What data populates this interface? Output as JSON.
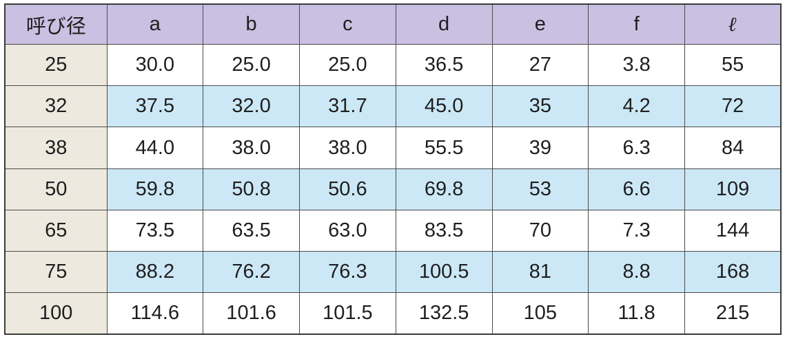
{
  "table": {
    "headers": [
      "呼び径",
      "a",
      "b",
      "c",
      "d",
      "e",
      "f",
      "ℓ"
    ],
    "rows": [
      [
        "25",
        "30.0",
        "25.0",
        "25.0",
        "36.5",
        "27",
        "3.8",
        "55"
      ],
      [
        "32",
        "37.5",
        "32.0",
        "31.7",
        "45.0",
        "35",
        "4.2",
        "72"
      ],
      [
        "38",
        "44.0",
        "38.0",
        "38.0",
        "55.5",
        "39",
        "6.3",
        "84"
      ],
      [
        "50",
        "59.8",
        "50.8",
        "50.6",
        "69.8",
        "53",
        "6.6",
        "109"
      ],
      [
        "65",
        "73.5",
        "63.5",
        "63.0",
        "83.5",
        "70",
        "7.3",
        "144"
      ],
      [
        "75",
        "88.2",
        "76.2",
        "76.3",
        "100.5",
        "81",
        "8.8",
        "168"
      ],
      [
        "100",
        "114.6",
        "101.6",
        "101.5",
        "132.5",
        "105",
        "11.8",
        "215"
      ]
    ]
  },
  "colors": {
    "header_bg": "#c9c0e2",
    "first_col_bg": "#ede9de",
    "stripe_bg": "#cce8f7",
    "row_bg": "#ffffff"
  }
}
